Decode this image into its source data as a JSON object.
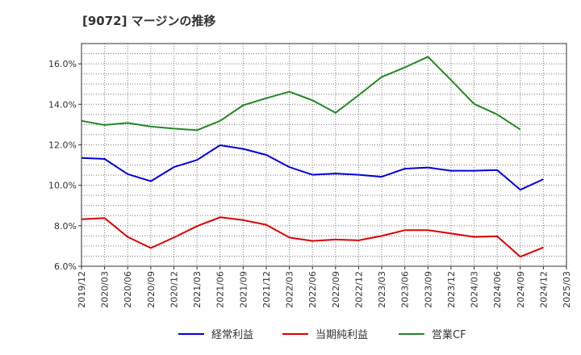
{
  "chart_data": {
    "type": "line",
    "title": "[9072]  マージンの推移",
    "x": [
      "2019/12",
      "2020/03",
      "2020/06",
      "2020/09",
      "2020/12",
      "2021/03",
      "2021/06",
      "2021/09",
      "2021/12",
      "2022/03",
      "2022/06",
      "2022/09",
      "2022/12",
      "2023/03",
      "2023/06",
      "2023/09",
      "2023/12",
      "2024/03",
      "2024/06",
      "2024/09",
      "2024/12",
      "2025/03"
    ],
    "ylim": [
      6.0,
      17.0
    ],
    "yticks": [
      6.0,
      8.0,
      10.0,
      12.0,
      14.0,
      16.0
    ],
    "ytick_labels": [
      "6.0%",
      "8.0%",
      "10.0%",
      "12.0%",
      "14.0%",
      "16.0%"
    ],
    "grid": true,
    "legend_position": "bottom",
    "series": [
      {
        "name": "経常利益",
        "color": "#0000dd",
        "values": [
          11.35,
          11.3,
          10.55,
          10.2,
          10.9,
          11.25,
          11.98,
          11.8,
          11.5,
          10.9,
          10.52,
          10.58,
          10.52,
          10.42,
          10.82,
          10.88,
          10.72,
          10.72,
          10.75,
          9.78,
          10.3,
          null
        ]
      },
      {
        "name": "当期純利益",
        "color": "#dd0000",
        "values": [
          8.32,
          8.38,
          7.45,
          6.9,
          7.42,
          7.98,
          8.42,
          8.28,
          8.05,
          7.42,
          7.25,
          7.32,
          7.28,
          7.5,
          7.78,
          7.78,
          7.62,
          7.45,
          7.48,
          6.47,
          6.93,
          null
        ]
      },
      {
        "name": "営業CF",
        "color": "#228822",
        "values": [
          13.18,
          12.98,
          13.08,
          12.9,
          12.8,
          12.72,
          13.18,
          13.95,
          14.3,
          14.62,
          14.2,
          13.58,
          14.45,
          15.35,
          15.82,
          16.35,
          15.2,
          14.02,
          13.5,
          12.75,
          null,
          null
        ]
      }
    ]
  }
}
